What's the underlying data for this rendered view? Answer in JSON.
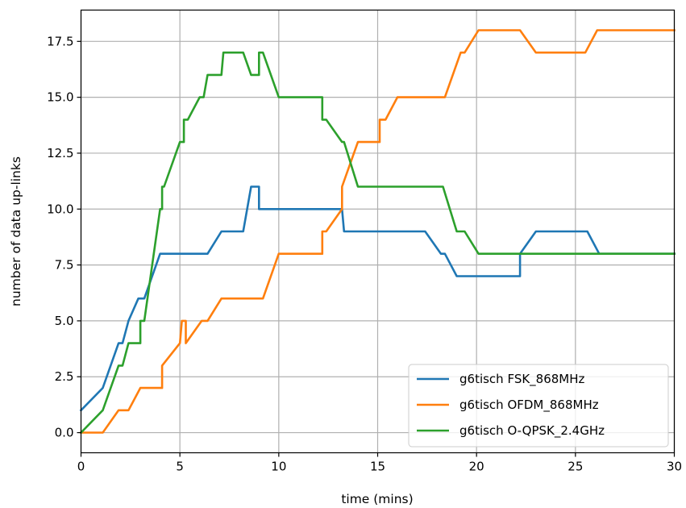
{
  "chart_data": {
    "type": "line",
    "title": "",
    "xlabel": "time (mins)",
    "ylabel": "number of data up-links",
    "xlim": [
      0,
      30
    ],
    "ylim": [
      -0.9,
      18.9
    ],
    "x_ticks": [
      0,
      5,
      10,
      15,
      20,
      25,
      30
    ],
    "x_tick_labels": [
      "0",
      "5",
      "10",
      "15",
      "20",
      "25",
      "30"
    ],
    "y_ticks": [
      0,
      2.5,
      5,
      7.5,
      10,
      12.5,
      15,
      17.5
    ],
    "y_tick_labels": [
      "0.0",
      "2.5",
      "5.0",
      "7.5",
      "10.0",
      "12.5",
      "15.0",
      "17.5"
    ],
    "grid": true,
    "legend_position": "lower right",
    "series": [
      {
        "name": "g6tisch FSK_868MHz",
        "color": "#1f77b4",
        "points": [
          [
            0,
            1
          ],
          [
            1.1,
            2
          ],
          [
            1.9,
            4
          ],
          [
            2.1,
            4
          ],
          [
            2.4,
            5
          ],
          [
            2.9,
            6
          ],
          [
            3.2,
            6
          ],
          [
            4,
            8
          ],
          [
            6.4,
            8
          ],
          [
            7.1,
            9
          ],
          [
            8.2,
            9
          ],
          [
            8.6,
            11
          ],
          [
            9,
            11
          ],
          [
            9,
            10
          ],
          [
            13.2,
            10
          ],
          [
            13.3,
            9
          ],
          [
            17.4,
            9
          ],
          [
            18.2,
            8
          ],
          [
            18.4,
            8
          ],
          [
            19,
            7
          ],
          [
            22.2,
            7
          ],
          [
            22.2,
            8
          ],
          [
            23,
            9
          ],
          [
            25.6,
            9
          ],
          [
            26.2,
            8
          ],
          [
            30,
            8
          ]
        ]
      },
      {
        "name": "g6tisch OFDM_868MHz",
        "color": "#ff7f0e",
        "points": [
          [
            0,
            0
          ],
          [
            1.1,
            0
          ],
          [
            1.9,
            1
          ],
          [
            2.4,
            1
          ],
          [
            3,
            2
          ],
          [
            4.1,
            2
          ],
          [
            4.1,
            3
          ],
          [
            5,
            4
          ],
          [
            5.1,
            5
          ],
          [
            5.3,
            5
          ],
          [
            5.3,
            4
          ],
          [
            6.1,
            5
          ],
          [
            6.4,
            5
          ],
          [
            7.1,
            6
          ],
          [
            9.2,
            6
          ],
          [
            10,
            8
          ],
          [
            12.2,
            8
          ],
          [
            12.2,
            9
          ],
          [
            12.4,
            9
          ],
          [
            13.2,
            10
          ],
          [
            13.2,
            11
          ],
          [
            14,
            13
          ],
          [
            15.1,
            13
          ],
          [
            15.1,
            14
          ],
          [
            15.4,
            14
          ],
          [
            16,
            15
          ],
          [
            18.4,
            15
          ],
          [
            19.2,
            17
          ],
          [
            19.4,
            17
          ],
          [
            20.1,
            18
          ],
          [
            22.2,
            18
          ],
          [
            23,
            17
          ],
          [
            25.5,
            17
          ],
          [
            26.1,
            18
          ],
          [
            30,
            18
          ]
        ]
      },
      {
        "name": "g6tisch O-QPSK_2.4GHz",
        "color": "#2ca02c",
        "points": [
          [
            0,
            0
          ],
          [
            1.1,
            1
          ],
          [
            1.9,
            3
          ],
          [
            2.1,
            3
          ],
          [
            2.4,
            4
          ],
          [
            3,
            4
          ],
          [
            3,
            5
          ],
          [
            3.2,
            5
          ],
          [
            4,
            10
          ],
          [
            4.1,
            10
          ],
          [
            4.1,
            11
          ],
          [
            4.2,
            11
          ],
          [
            5,
            13
          ],
          [
            5.2,
            13
          ],
          [
            5.2,
            14
          ],
          [
            5.4,
            14
          ],
          [
            6,
            15
          ],
          [
            6.2,
            15
          ],
          [
            6.4,
            16
          ],
          [
            7.1,
            16
          ],
          [
            7.2,
            17
          ],
          [
            8.2,
            17
          ],
          [
            8.6,
            16
          ],
          [
            9,
            16
          ],
          [
            9,
            17
          ],
          [
            9.2,
            17
          ],
          [
            10,
            15
          ],
          [
            12.2,
            15
          ],
          [
            12.2,
            14
          ],
          [
            12.4,
            14
          ],
          [
            13.2,
            13
          ],
          [
            13.3,
            13
          ],
          [
            14,
            11
          ],
          [
            18.3,
            11
          ],
          [
            19,
            9
          ],
          [
            19.4,
            9
          ],
          [
            20.1,
            8
          ],
          [
            30,
            8
          ]
        ]
      }
    ]
  }
}
